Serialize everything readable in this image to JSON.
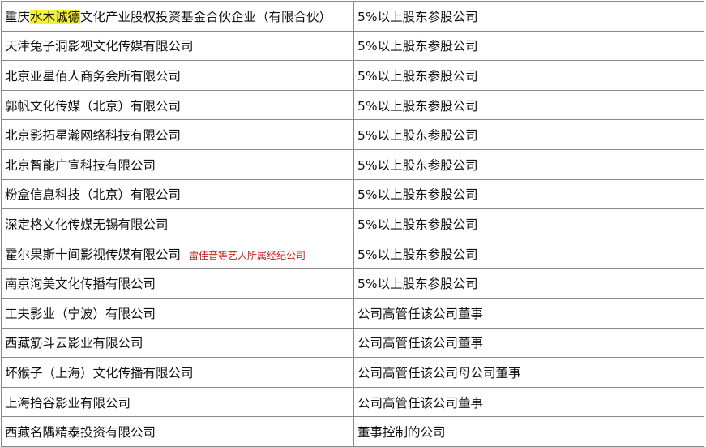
{
  "rows": [
    {
      "pre": "重庆",
      "highlight": "水木诚德",
      "post": "文化产业股权投资基金合伙企业（有限合伙）",
      "relation": "5%以上股东参股公司"
    },
    {
      "pre": "天津兔子洞影视文化传媒有限公司",
      "relation": "5%以上股东参股公司"
    },
    {
      "pre": "北京亚星佰人商务会所有限公司",
      "relation": "5%以上股东参股公司"
    },
    {
      "pre": "郭帆文化传媒（北京）有限公司",
      "relation": "5%以上股东参股公司"
    },
    {
      "pre": "北京影拓星瀚网络科技有限公司",
      "relation": "5%以上股东参股公司"
    },
    {
      "pre": "北京智能广宣科技有限公司",
      "relation": "5%以上股东参股公司"
    },
    {
      "pre": "粉盒信息科技（北京）有限公司",
      "relation": "5%以上股东参股公司"
    },
    {
      "pre": "深定格文化传媒无锡有限公司",
      "relation": "5%以上股东参股公司"
    },
    {
      "pre": "霍尔果斯十间影视传媒有限公司",
      "note": "雷佳音等艺人所属经纪公司",
      "relation": "5%以上股东参股公司"
    },
    {
      "pre": "南京洵美文化传播有限公司",
      "relation": "5%以上股东参股公司"
    },
    {
      "pre": "工夫影业（宁波）有限公司",
      "relation": "公司高管任该公司董事"
    },
    {
      "pre": "西藏筋斗云影业有限公司",
      "relation": "公司高管任该公司董事"
    },
    {
      "pre": "坏猴子（上海）文化传播有限公司",
      "relation": "公司高管任该公司母公司董事"
    },
    {
      "pre": "上海拾谷影业有限公司",
      "relation": "公司高管任该公司董事"
    },
    {
      "pre": "西藏名隅精泰投资有限公司",
      "relation": "董事控制的公司"
    }
  ],
  "colors": {
    "highlight": "#f3ef3a",
    "note": "#d01818"
  }
}
